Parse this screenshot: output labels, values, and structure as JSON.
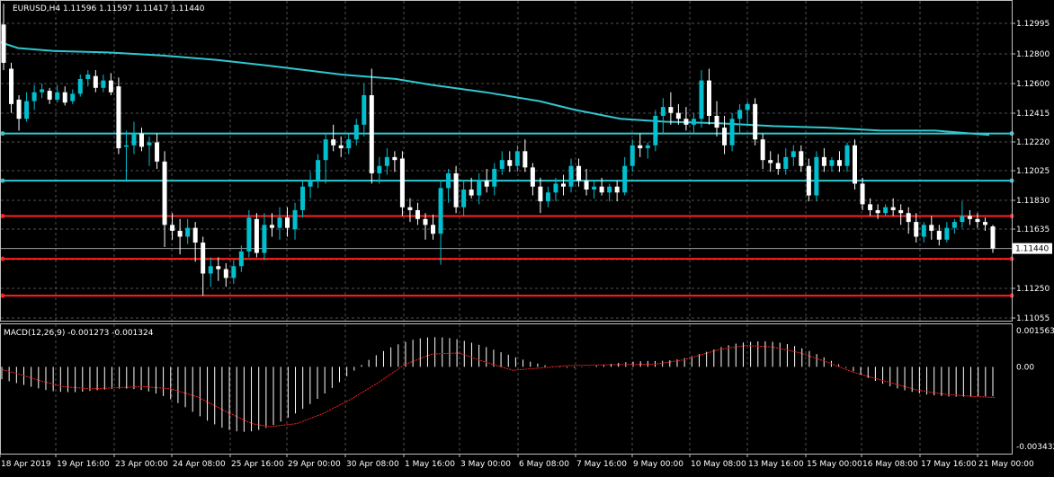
{
  "colors": {
    "background": "#000000",
    "grid": "#505050",
    "frame": "#c0c0c0",
    "text": "#ffffff",
    "bull_candle": "#00c0d0",
    "bear_candle": "#ffffff",
    "moving_average": "#30c8d0",
    "support_resistance_cyan": "#30c8d0",
    "support_resistance_red": "#ff2020",
    "macd_histogram": "#ffffff",
    "macd_signal": "#ff2020",
    "current_price_line": "#a0a0a0"
  },
  "chart_data": [
    {
      "type": "candlestick",
      "header": "EURUSD,H4  1.11596 1.11597 1.11417 1.11440",
      "grid": true,
      "ylim": [
        1.1095,
        1.1312
      ],
      "y_ticks": [
        "1.12995",
        "1.12800",
        "1.12600",
        "1.12415",
        "1.12220",
        "1.12025",
        "1.11830",
        "1.11635",
        "1.11440",
        "1.11250",
        "1.11055"
      ],
      "current_price": "1.11440",
      "x_ticks": [
        "18 Apr 2019",
        "19 Apr 16:00",
        "23 Apr 00:00",
        "24 Apr 08:00",
        "25 Apr 16:00",
        "29 Apr 00:00",
        "30 Apr 08:00",
        "1 May 16:00",
        "3 May 00:00",
        "6 May 08:00",
        "7 May 16:00",
        "9 May 00:00",
        "10 May 08:00",
        "13 May 16:00",
        "15 May 00:00",
        "16 May 08:00",
        "17 May 16:00",
        "21 May 00:00"
      ],
      "horizontal_levels": [
        {
          "price": 1.1222,
          "color": "cyan"
        },
        {
          "price": 1.119,
          "color": "cyan"
        },
        {
          "price": 1.1166,
          "color": "red"
        },
        {
          "price": 1.1137,
          "color": "red"
        },
        {
          "price": 1.1112,
          "color": "red"
        }
      ],
      "moving_average": [
        [
          0,
          1.1284
        ],
        [
          20,
          1.128
        ],
        [
          60,
          1.1278
        ],
        [
          120,
          1.1277
        ],
        [
          180,
          1.1275
        ],
        [
          240,
          1.1272
        ],
        [
          300,
          1.1268
        ],
        [
          380,
          1.1262
        ],
        [
          440,
          1.1259
        ],
        [
          480,
          1.1255
        ],
        [
          540,
          1.125
        ],
        [
          600,
          1.1244
        ],
        [
          640,
          1.1238
        ],
        [
          690,
          1.1232
        ],
        [
          740,
          1.123
        ],
        [
          800,
          1.1229
        ],
        [
          860,
          1.1227
        ],
        [
          920,
          1.1226
        ],
        [
          980,
          1.1224
        ],
        [
          1040,
          1.1224
        ],
        [
          1100,
          1.1221
        ]
      ],
      "candles": [
        [
          1.1296,
          1.131,
          1.1265,
          1.127
        ],
        [
          1.1266,
          1.127,
          1.1236,
          1.1242
        ],
        [
          1.1245,
          1.1248,
          1.1224,
          1.1232
        ],
        [
          1.1232,
          1.125,
          1.123,
          1.1244
        ],
        [
          1.1244,
          1.1255,
          1.1238,
          1.125
        ],
        [
          1.125,
          1.1256,
          1.1246,
          1.1252
        ],
        [
          1.1251,
          1.1253,
          1.1242,
          1.1245
        ],
        [
          1.1245,
          1.1255,
          1.1243,
          1.125
        ],
        [
          1.125,
          1.1254,
          1.1241,
          1.1243
        ],
        [
          1.1244,
          1.1252,
          1.1242,
          1.1249
        ],
        [
          1.1249,
          1.1262,
          1.1247,
          1.1259
        ],
        [
          1.1259,
          1.1265,
          1.1254,
          1.1262
        ],
        [
          1.1261,
          1.1265,
          1.125,
          1.1253
        ],
        [
          1.1253,
          1.1262,
          1.125,
          1.1258
        ],
        [
          1.1258,
          1.1263,
          1.1248,
          1.125
        ],
        [
          1.1254,
          1.126,
          1.1208,
          1.1212
        ],
        [
          1.1213,
          1.1224,
          1.119,
          1.1214
        ],
        [
          1.1214,
          1.123,
          1.1208,
          1.1222
        ],
        [
          1.1222,
          1.1226,
          1.121,
          1.1213
        ],
        [
          1.1214,
          1.122,
          1.12,
          1.1216
        ],
        [
          1.1216,
          1.1222,
          1.1198,
          1.1203
        ],
        [
          1.1203,
          1.121,
          1.1145,
          1.116
        ],
        [
          1.116,
          1.1168,
          1.115,
          1.1156
        ],
        [
          1.1156,
          1.1164,
          1.114,
          1.1152
        ],
        [
          1.1152,
          1.1164,
          1.1147,
          1.1158
        ],
        [
          1.1158,
          1.1162,
          1.1135,
          1.1148
        ],
        [
          1.1148,
          1.1152,
          1.1112,
          1.1127
        ],
        [
          1.1127,
          1.1138,
          1.1118,
          1.1132
        ],
        [
          1.1132,
          1.1138,
          1.1122,
          1.113
        ],
        [
          1.113,
          1.1134,
          1.1118,
          1.1124
        ],
        [
          1.1124,
          1.1136,
          1.112,
          1.1132
        ],
        [
          1.1132,
          1.1146,
          1.1128,
          1.1142
        ],
        [
          1.1142,
          1.117,
          1.1138,
          1.1165
        ],
        [
          1.1164,
          1.1168,
          1.1138,
          1.1141
        ],
        [
          1.1141,
          1.1168,
          1.1136,
          1.116
        ],
        [
          1.116,
          1.1168,
          1.1152,
          1.1158
        ],
        [
          1.1158,
          1.1172,
          1.115,
          1.1165
        ],
        [
          1.1165,
          1.1172,
          1.1152,
          1.1158
        ],
        [
          1.1157,
          1.1175,
          1.115,
          1.117
        ],
        [
          1.117,
          1.119,
          1.1165,
          1.1186
        ],
        [
          1.1186,
          1.1196,
          1.1178,
          1.119
        ],
        [
          1.119,
          1.1208,
          1.1185,
          1.1204
        ],
        [
          1.1204,
          1.1222,
          1.1188,
          1.1218
        ],
        [
          1.1218,
          1.1228,
          1.121,
          1.1214
        ],
        [
          1.1214,
          1.122,
          1.1206,
          1.1212
        ],
        [
          1.1212,
          1.1222,
          1.1208,
          1.1218
        ],
        [
          1.1218,
          1.1232,
          1.1214,
          1.1228
        ],
        [
          1.1228,
          1.1256,
          1.122,
          1.1248
        ],
        [
          1.1248,
          1.1266,
          1.1188,
          1.1195
        ],
        [
          1.1195,
          1.1206,
          1.1188,
          1.12
        ],
        [
          1.12,
          1.1212,
          1.1194,
          1.1206
        ],
        [
          1.1206,
          1.121,
          1.1196,
          1.1204
        ],
        [
          1.1205,
          1.121,
          1.1166,
          1.1172
        ],
        [
          1.1172,
          1.1178,
          1.1162,
          1.117
        ],
        [
          1.117,
          1.1175,
          1.116,
          1.1164
        ],
        [
          1.1164,
          1.1168,
          1.115,
          1.116
        ],
        [
          1.116,
          1.1167,
          1.115,
          1.1154
        ],
        [
          1.1154,
          1.119,
          1.1133,
          1.1185
        ],
        [
          1.1185,
          1.1198,
          1.1175,
          1.1195
        ],
        [
          1.1195,
          1.12,
          1.1168,
          1.1172
        ],
        [
          1.1172,
          1.119,
          1.1166,
          1.1184
        ],
        [
          1.1184,
          1.1192,
          1.1178,
          1.118
        ],
        [
          1.118,
          1.1195,
          1.1174,
          1.119
        ],
        [
          1.119,
          1.1198,
          1.1182,
          1.1186
        ],
        [
          1.1186,
          1.1202,
          1.118,
          1.1198
        ],
        [
          1.1198,
          1.121,
          1.1194,
          1.1204
        ],
        [
          1.1204,
          1.121,
          1.1196,
          1.12
        ],
        [
          1.12,
          1.1214,
          1.1196,
          1.121
        ],
        [
          1.121,
          1.1218,
          1.1196,
          1.1199
        ],
        [
          1.1199,
          1.1202,
          1.118,
          1.1186
        ],
        [
          1.1186,
          1.1192,
          1.1168,
          1.1176
        ],
        [
          1.1176,
          1.1186,
          1.1172,
          1.1182
        ],
        [
          1.1182,
          1.1192,
          1.1176,
          1.1188
        ],
        [
          1.1188,
          1.1194,
          1.118,
          1.1186
        ],
        [
          1.1186,
          1.1205,
          1.1182,
          1.12
        ],
        [
          1.12,
          1.1205,
          1.1186,
          1.119
        ],
        [
          1.119,
          1.1198,
          1.118,
          1.1184
        ],
        [
          1.1184,
          1.119,
          1.1178,
          1.1186
        ],
        [
          1.1186,
          1.1192,
          1.118,
          1.1182
        ],
        [
          1.1182,
          1.1188,
          1.1176,
          1.1186
        ],
        [
          1.1186,
          1.119,
          1.1176,
          1.1182
        ],
        [
          1.1182,
          1.1206,
          1.118,
          1.12
        ],
        [
          1.12,
          1.1218,
          1.1196,
          1.1214
        ],
        [
          1.1214,
          1.1222,
          1.1206,
          1.1212
        ],
        [
          1.1212,
          1.1216,
          1.1205,
          1.1214
        ],
        [
          1.1214,
          1.1238,
          1.121,
          1.1234
        ],
        [
          1.1234,
          1.1246,
          1.1222,
          1.124
        ],
        [
          1.124,
          1.125,
          1.1228,
          1.1236
        ],
        [
          1.1236,
          1.1242,
          1.1228,
          1.1232
        ],
        [
          1.1232,
          1.124,
          1.1224,
          1.1228
        ],
        [
          1.1228,
          1.1236,
          1.1222,
          1.1232
        ],
        [
          1.1232,
          1.1265,
          1.1226,
          1.1258
        ],
        [
          1.1258,
          1.1266,
          1.1228,
          1.1234
        ],
        [
          1.1234,
          1.1244,
          1.122,
          1.1226
        ],
        [
          1.1226,
          1.1234,
          1.1208,
          1.1214
        ],
        [
          1.1214,
          1.1236,
          1.121,
          1.1232
        ],
        [
          1.1232,
          1.1242,
          1.1222,
          1.1238
        ],
        [
          1.1238,
          1.1244,
          1.1228,
          1.1242
        ],
        [
          1.1242,
          1.1246,
          1.1214,
          1.1218
        ],
        [
          1.1218,
          1.1222,
          1.1198,
          1.1204
        ],
        [
          1.1204,
          1.121,
          1.1196,
          1.1202
        ],
        [
          1.1202,
          1.1208,
          1.1194,
          1.1198
        ],
        [
          1.1198,
          1.1212,
          1.1194,
          1.1206
        ],
        [
          1.1206,
          1.1214,
          1.12,
          1.121
        ],
        [
          1.121,
          1.1214,
          1.1196,
          1.12
        ],
        [
          1.12,
          1.1205,
          1.1176,
          1.118
        ],
        [
          1.118,
          1.121,
          1.1176,
          1.1206
        ],
        [
          1.1206,
          1.1212,
          1.1196,
          1.12
        ],
        [
          1.12,
          1.1206,
          1.1196,
          1.1204
        ],
        [
          1.1204,
          1.121,
          1.1196,
          1.12
        ],
        [
          1.12,
          1.1216,
          1.1196,
          1.1214
        ],
        [
          1.1214,
          1.1218,
          1.1184,
          1.1188
        ],
        [
          1.1188,
          1.1192,
          1.117,
          1.1174
        ],
        [
          1.1174,
          1.1178,
          1.1166,
          1.117
        ],
        [
          1.117,
          1.1174,
          1.1164,
          1.1168
        ],
        [
          1.1168,
          1.1174,
          1.1166,
          1.1172
        ],
        [
          1.1172,
          1.1178,
          1.1166,
          1.117
        ],
        [
          1.117,
          1.1174,
          1.116,
          1.1168
        ],
        [
          1.1168,
          1.1172,
          1.1154,
          1.1162
        ],
        [
          1.1162,
          1.1168,
          1.1148,
          1.1152
        ],
        [
          1.1152,
          1.1162,
          1.1148,
          1.116
        ],
        [
          1.116,
          1.1166,
          1.115,
          1.1156
        ],
        [
          1.1156,
          1.116,
          1.1146,
          1.115
        ],
        [
          1.115,
          1.1162,
          1.1148,
          1.1158
        ],
        [
          1.1158,
          1.1164,
          1.1154,
          1.1162
        ],
        [
          1.1162,
          1.1176,
          1.1158,
          1.1166
        ],
        [
          1.1166,
          1.117,
          1.116,
          1.1164
        ],
        [
          1.1164,
          1.1168,
          1.1158,
          1.1162
        ],
        [
          1.1162,
          1.1165,
          1.1156,
          1.116
        ],
        [
          1.1159,
          1.116,
          1.1141,
          1.1144
        ]
      ]
    },
    {
      "type": "bar",
      "header": "MACD(12,26,9) -0.001273 -0.001324",
      "ylim": [
        -0.003432,
        0.001563
      ],
      "y_ticks": [
        "0.001563",
        "0.00",
        "-0.003432"
      ],
      "histogram": [
        -0.00054,
        -0.00062,
        -0.0007,
        -0.00078,
        -0.00086,
        -0.00093,
        -0.001,
        -0.00105,
        -0.00108,
        -0.00109,
        -0.00109,
        -0.00107,
        -0.00104,
        -0.00101,
        -0.00098,
        -0.00095,
        -0.00094,
        -0.00094,
        -0.00096,
        -0.001,
        -0.00106,
        -0.00115,
        -0.00126,
        -0.0014,
        -0.00156,
        -0.00174,
        -0.00194,
        -0.00213,
        -0.00232,
        -0.00248,
        -0.00262,
        -0.00272,
        -0.00278,
        -0.0028,
        -0.00278,
        -0.00272,
        -0.00263,
        -0.00251,
        -0.00236,
        -0.00219,
        -0.00201,
        -0.00181,
        -0.0016,
        -0.00138,
        -0.00115,
        -0.00091,
        -0.00066,
        -0.00041,
        -0.00016,
        8e-05,
        0.0003,
        0.0005,
        0.00068,
        0.00084,
        0.00097,
        0.00108,
        0.00117,
        0.00123,
        0.00127,
        0.00128,
        0.00127,
        0.00124,
        0.00119,
        0.00112,
        0.00104,
        0.00095,
        0.00085,
        0.00074,
        0.00063,
        0.00052,
        0.00041,
        0.00031,
        0.00022,
        0.00014,
        7e-05,
        2e-05,
        -2e-05,
        -4e-05,
        -4e-05,
        -2e-05,
        1e-05,
        5e-05,
        9e-05,
        0.00013,
        0.00017,
        0.0002,
        0.00022,
        0.00024,
        0.00025,
        0.00025,
        0.00026,
        0.00028,
        0.00032,
        0.00038,
        0.00046,
        0.00055,
        0.00065,
        0.00075,
        0.00085,
        0.00093,
        0.001,
        0.00105,
        0.00108,
        0.0011,
        0.0011,
        0.00108,
        0.00104,
        0.00098,
        0.0009,
        0.0008,
        0.00068,
        0.00055,
        0.00041,
        0.00026,
        0.00011,
        -4e-05,
        -0.00019,
        -0.00034,
        -0.00048,
        -0.00061,
        -0.00073,
        -0.00084,
        -0.00093,
        -0.00101,
        -0.00108,
        -0.00114,
        -0.00119,
        -0.00123,
        -0.00126,
        -0.00128,
        -0.00129,
        -0.00129,
        -0.00128,
        -0.00127,
        -0.00127,
        -0.00127
      ],
      "signal": [
        [
          0,
          -0.0001
        ],
        [
          20,
          -0.0003
        ],
        [
          45,
          -0.0006
        ],
        [
          70,
          -0.00085
        ],
        [
          100,
          -0.00095
        ],
        [
          130,
          -0.0009
        ],
        [
          160,
          -0.00085
        ],
        [
          190,
          -0.00095
        ],
        [
          220,
          -0.0013
        ],
        [
          250,
          -0.0019
        ],
        [
          280,
          -0.00245
        ],
        [
          300,
          -0.00258
        ],
        [
          330,
          -0.00245
        ],
        [
          360,
          -0.002
        ],
        [
          390,
          -0.0014
        ],
        [
          420,
          -0.0007
        ],
        [
          450,
          0.0001
        ],
        [
          480,
          0.00055
        ],
        [
          510,
          0.0006
        ],
        [
          540,
          0.0002
        ],
        [
          570,
          -0.00015
        ],
        [
          600,
          -5e-05
        ],
        [
          630,
          5e-05
        ],
        [
          660,
          8e-05
        ],
        [
          700,
          0.0001
        ],
        [
          730,
          0.00012
        ],
        [
          760,
          0.0003
        ],
        [
          800,
          0.00075
        ],
        [
          830,
          0.00092
        ],
        [
          860,
          0.00085
        ],
        [
          890,
          0.0006
        ],
        [
          920,
          0.0002
        ],
        [
          950,
          -0.00025
        ],
        [
          990,
          -0.00068
        ],
        [
          1020,
          -0.001
        ],
        [
          1050,
          -0.00118
        ],
        [
          1080,
          -0.00127
        ],
        [
          1106,
          -0.00132
        ]
      ]
    }
  ]
}
